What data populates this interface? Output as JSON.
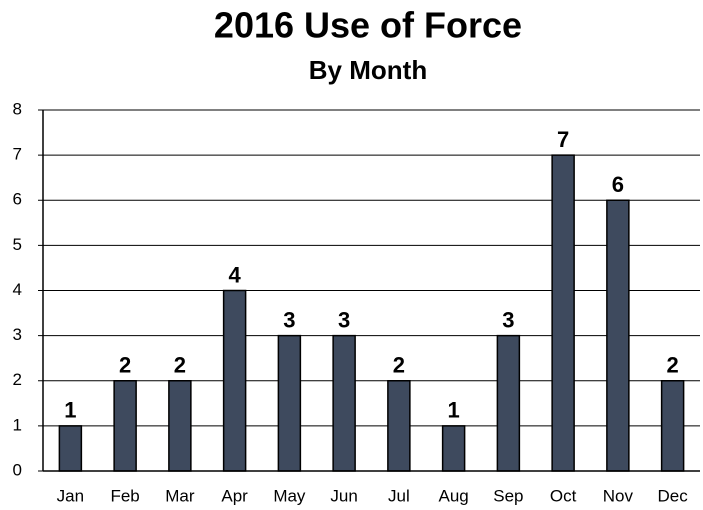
{
  "chart_data": {
    "type": "bar",
    "title": "2016 Use of Force",
    "subtitle": "By Month",
    "categories": [
      "Jan",
      "Feb",
      "Mar",
      "Apr",
      "May",
      "Jun",
      "Jul",
      "Aug",
      "Sep",
      "Oct",
      "Nov",
      "Dec"
    ],
    "values": [
      1,
      2,
      2,
      4,
      3,
      3,
      2,
      1,
      3,
      7,
      6,
      2
    ],
    "color": "#3e4a5e",
    "ylim": [
      0,
      8
    ],
    "yticks": [
      0,
      1,
      2,
      3,
      4,
      5,
      6,
      7,
      8
    ],
    "grid": true
  }
}
